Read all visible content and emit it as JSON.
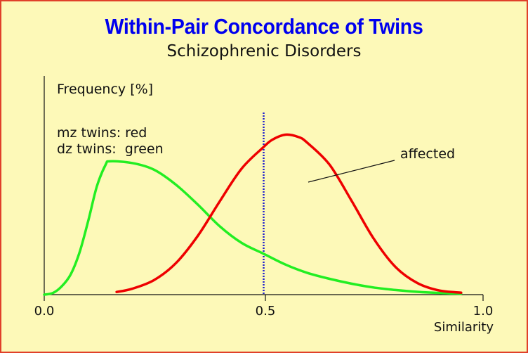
{
  "chart_data": {
    "type": "line",
    "title": "Within-Pair Concordance of Twins",
    "subtitle": "Schizophrenic Disorders",
    "ylabel": "Frequency [%]",
    "xlabel": "Similarity",
    "x_ticks": [
      "0.0",
      "0.5",
      "1.0"
    ],
    "xlim": [
      0,
      1
    ],
    "legend_lines": [
      "mz twins: red",
      "dz twins:  green"
    ],
    "annotation": "affected",
    "threshold_x": 0.5,
    "colors": {
      "background": "#fdf9b8",
      "border": "#e0402a",
      "title": "#0000ee",
      "mz": "#ee0000",
      "dz": "#22ee22",
      "threshold": "#2020cc"
    },
    "series": [
      {
        "name": "mz twins",
        "color": "red",
        "x": [
          0.165,
          0.2,
          0.25,
          0.3,
          0.35,
          0.4,
          0.45,
          0.5,
          0.52,
          0.55,
          0.58,
          0.6,
          0.65,
          0.7,
          0.75,
          0.8,
          0.85,
          0.9,
          0.95
        ],
        "y": [
          0.016,
          0.035,
          0.087,
          0.189,
          0.353,
          0.56,
          0.757,
          0.886,
          0.93,
          0.96,
          0.945,
          0.91,
          0.78,
          0.565,
          0.339,
          0.167,
          0.07,
          0.025,
          0.012
        ]
      },
      {
        "name": "dz twins",
        "color": "green",
        "x": [
          0.0,
          0.02,
          0.04,
          0.06,
          0.08,
          0.1,
          0.12,
          0.14,
          0.15,
          0.2,
          0.25,
          0.3,
          0.35,
          0.4,
          0.45,
          0.5,
          0.55,
          0.6,
          0.65,
          0.7,
          0.75,
          0.8,
          0.85,
          0.9,
          0.95
        ],
        "y": [
          0.0,
          0.01,
          0.05,
          0.12,
          0.25,
          0.44,
          0.65,
          0.78,
          0.8,
          0.79,
          0.75,
          0.66,
          0.54,
          0.41,
          0.31,
          0.245,
          0.18,
          0.13,
          0.095,
          0.066,
          0.043,
          0.028,
          0.017,
          0.01,
          0.006
        ]
      }
    ]
  }
}
